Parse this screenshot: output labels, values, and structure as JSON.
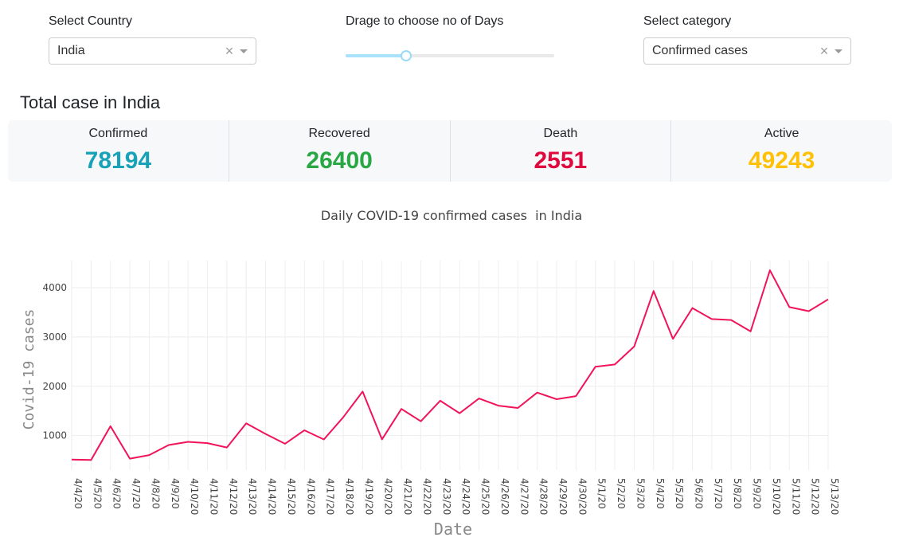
{
  "controls": {
    "country_label": "Select Country",
    "country_value": "India",
    "days_label": "Drage to choose no of Days",
    "days_fraction": 0.29,
    "category_label": "Select category",
    "category_value": "Confirmed cases",
    "clear_glyph": "×"
  },
  "summary": {
    "heading": "Total case in India",
    "stats": [
      {
        "label": "Confirmed",
        "value": "78194",
        "color": "#17a2b8"
      },
      {
        "label": "Recovered",
        "value": "26400",
        "color": "#28a745"
      },
      {
        "label": "Death",
        "value": "2551",
        "color": "#e0093e"
      },
      {
        "label": "Active",
        "value": "49243",
        "color": "#ffc107"
      }
    ]
  },
  "chart_data": {
    "type": "line",
    "title": "Daily COVID-19 confirmed cases  in India",
    "xlabel": "Date",
    "ylabel": "Covid-19 cases",
    "x": [
      "4/4/20",
      "4/5/20",
      "4/6/20",
      "4/7/20",
      "4/8/20",
      "4/9/20",
      "4/10/20",
      "4/11/20",
      "4/12/20",
      "4/13/20",
      "4/14/20",
      "4/15/20",
      "4/16/20",
      "4/17/20",
      "4/18/20",
      "4/19/20",
      "4/20/20",
      "4/21/20",
      "4/22/20",
      "4/23/20",
      "4/24/20",
      "4/25/20",
      "4/26/20",
      "4/27/20",
      "4/28/20",
      "4/29/20",
      "4/30/20",
      "5/1/20",
      "5/2/20",
      "5/3/20",
      "5/4/20",
      "5/5/20",
      "5/6/20",
      "5/7/20",
      "5/8/20",
      "5/9/20",
      "5/10/20",
      "5/11/20",
      "5/12/20",
      "5/13/20"
    ],
    "values": [
      515,
      506,
      1190,
      533,
      606,
      809,
      873,
      848,
      759,
      1248,
      1034,
      835,
      1108,
      922,
      1371,
      1893,
      924,
      1541,
      1290,
      1707,
      1453,
      1753,
      1607,
      1561,
      1873,
      1738,
      1801,
      2396,
      2442,
      2806,
      3932,
      2963,
      3587,
      3364,
      3344,
      3113,
      4353,
      3607,
      3524,
      3763
    ],
    "yticks": [
      1000,
      2000,
      3000,
      4000
    ],
    "ylim": [
      300,
      4550
    ],
    "grid": true,
    "line_color": "#f0145a"
  }
}
